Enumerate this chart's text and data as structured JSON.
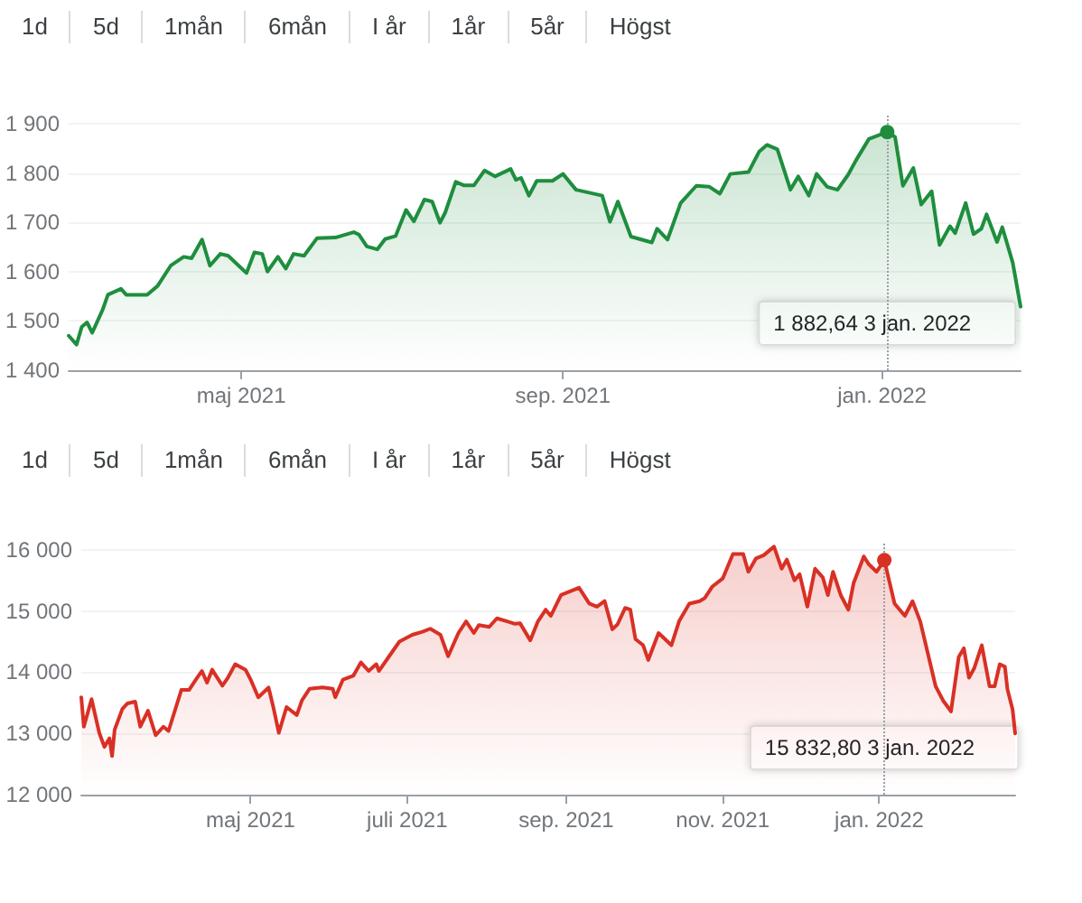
{
  "chart_data": [
    {
      "type": "area",
      "annotations": [
        "1d",
        "5d",
        "1mån",
        "6mån",
        "I år",
        "1år",
        "5år",
        "Högst"
      ],
      "xlim": [
        "2021-02-24",
        "2022-02-23"
      ],
      "xticks": [
        {
          "value": "2021-05-01",
          "label": "maj 2021"
        },
        {
          "value": "2021-09-01",
          "label": "sep. 2021"
        },
        {
          "value": "2022-01-01",
          "label": "jan. 2022"
        }
      ],
      "ylim": [
        1400,
        1920
      ],
      "yticks": [
        {
          "value": 1400,
          "label": "1 400"
        },
        {
          "value": 1500,
          "label": "1 500"
        },
        {
          "value": 1600,
          "label": "1 600"
        },
        {
          "value": 1700,
          "label": "1 700"
        },
        {
          "value": 1800,
          "label": "1 800"
        },
        {
          "value": 1900,
          "label": "1 900"
        }
      ],
      "grid": "y",
      "marker": "none",
      "line_style": "solid",
      "ref_lines": [
        {
          "axis": "x",
          "value": "2022-01-03",
          "label": "1 882,64 3 jan. 2022",
          "color": "#9aa0a6",
          "line_style": "dotted"
        }
      ],
      "series": [
        {
          "color": "#1e8e3e",
          "x": [
            "2021-02-24",
            "2021-02-27",
            "2021-03-01",
            "2021-03-03",
            "2021-03-05",
            "2021-03-09",
            "2021-03-11",
            "2021-03-16",
            "2021-03-18",
            "2021-03-26",
            "2021-03-30",
            "2021-04-04",
            "2021-04-09",
            "2021-04-12",
            "2021-04-16",
            "2021-04-19",
            "2021-04-23",
            "2021-04-26",
            "2021-04-30",
            "2021-05-03",
            "2021-05-06",
            "2021-05-09",
            "2021-05-11",
            "2021-05-15",
            "2021-05-18",
            "2021-05-21",
            "2021-05-25",
            "2021-05-30",
            "2021-06-06",
            "2021-06-13",
            "2021-06-15",
            "2021-06-18",
            "2021-06-22",
            "2021-06-25",
            "2021-06-29",
            "2021-07-03",
            "2021-07-06",
            "2021-07-10",
            "2021-07-13",
            "2021-07-16",
            "2021-07-18",
            "2021-07-22",
            "2021-07-25",
            "2021-07-29",
            "2021-08-02",
            "2021-08-06",
            "2021-08-12",
            "2021-08-14",
            "2021-08-16",
            "2021-08-19",
            "2021-08-22",
            "2021-08-28",
            "2021-09-01",
            "2021-09-06",
            "2021-09-11",
            "2021-09-16",
            "2021-09-19",
            "2021-09-22",
            "2021-09-27",
            "2021-10-01",
            "2021-10-05",
            "2021-10-07",
            "2021-10-11",
            "2021-10-16",
            "2021-10-22",
            "2021-10-27",
            "2021-10-31",
            "2021-11-04",
            "2021-11-11",
            "2021-11-15",
            "2021-11-18",
            "2021-11-22",
            "2021-11-27",
            "2021-11-30",
            "2021-12-04",
            "2021-12-07",
            "2021-12-11",
            "2021-12-15",
            "2021-12-19",
            "2021-12-22",
            "2021-12-27",
            "2022-01-03",
            "2022-01-06",
            "2022-01-09",
            "2022-01-13",
            "2022-01-16",
            "2022-01-20",
            "2022-01-23",
            "2022-01-27",
            "2022-01-29",
            "2022-02-02",
            "2022-02-05",
            "2022-02-08",
            "2022-02-10",
            "2022-02-14",
            "2022-02-16",
            "2022-02-20",
            "2022-02-23"
          ],
          "values": [
            1470,
            1452,
            1488,
            1497,
            1476,
            1523,
            1553,
            1565,
            1553,
            1553,
            1571,
            1612,
            1630,
            1627,
            1665,
            1612,
            1636,
            1632,
            1612,
            1597,
            1639,
            1636,
            1600,
            1630,
            1606,
            1636,
            1632,
            1668,
            1669,
            1680,
            1675,
            1651,
            1645,
            1666,
            1672,
            1725,
            1702,
            1746,
            1742,
            1699,
            1720,
            1782,
            1775,
            1775,
            1805,
            1793,
            1808,
            1786,
            1790,
            1754,
            1784,
            1784,
            1798,
            1766,
            1760,
            1754,
            1701,
            1742,
            1671,
            1665,
            1659,
            1687,
            1665,
            1739,
            1774,
            1772,
            1758,
            1798,
            1802,
            1843,
            1857,
            1848,
            1766,
            1793,
            1754,
            1798,
            1772,
            1766,
            1796,
            1825,
            1869,
            1883,
            1873,
            1774,
            1810,
            1736,
            1763,
            1654,
            1692,
            1678,
            1739,
            1676,
            1687,
            1716,
            1660,
            1690,
            1618,
            1529
          ]
        }
      ]
    },
    {
      "type": "area",
      "annotations": [
        "1d",
        "5d",
        "1mån",
        "6mån",
        "I år",
        "1år",
        "5år",
        "Högst"
      ],
      "xlim": [
        "2021-02-24",
        "2022-02-23"
      ],
      "xticks": [
        {
          "value": "2021-05-01",
          "label": "maj 2021"
        },
        {
          "value": "2021-07-01",
          "label": "juli 2021"
        },
        {
          "value": "2021-09-01",
          "label": "sep. 2021"
        },
        {
          "value": "2021-11-01",
          "label": "nov. 2021"
        },
        {
          "value": "2022-01-01",
          "label": "jan. 2022"
        }
      ],
      "ylim": [
        12000,
        16100
      ],
      "yticks": [
        {
          "value": 12000,
          "label": "12 000"
        },
        {
          "value": 13000,
          "label": "13 000"
        },
        {
          "value": 14000,
          "label": "14 000"
        },
        {
          "value": 15000,
          "label": "15 000"
        },
        {
          "value": 16000,
          "label": "16 000"
        }
      ],
      "grid": "y",
      "marker": "none",
      "line_style": "solid",
      "ref_lines": [
        {
          "axis": "x",
          "value": "2022-01-03",
          "label": "15 832,80 3 jan. 2022",
          "color": "#9aa0a6",
          "line_style": "dotted"
        }
      ],
      "series": [
        {
          "color": "#d93025",
          "x": [
            "2021-02-24",
            "2021-02-25",
            "2021-02-28",
            "2021-03-03",
            "2021-03-05",
            "2021-03-07",
            "2021-03-08",
            "2021-03-09",
            "2021-03-12",
            "2021-03-14",
            "2021-03-17",
            "2021-03-19",
            "2021-03-22",
            "2021-03-25",
            "2021-03-28",
            "2021-03-30",
            "2021-04-04",
            "2021-04-07",
            "2021-04-10",
            "2021-04-12",
            "2021-04-14",
            "2021-04-16",
            "2021-04-20",
            "2021-04-22",
            "2021-04-25",
            "2021-04-29",
            "2021-05-01",
            "2021-05-04",
            "2021-05-08",
            "2021-05-10",
            "2021-05-12",
            "2021-05-15",
            "2021-05-19",
            "2021-05-21",
            "2021-05-24",
            "2021-05-29",
            "2021-06-02",
            "2021-06-03",
            "2021-06-06",
            "2021-06-10",
            "2021-06-13",
            "2021-06-16",
            "2021-06-19",
            "2021-06-20",
            "2021-06-24",
            "2021-06-28",
            "2021-07-03",
            "2021-07-07",
            "2021-07-10",
            "2021-07-14",
            "2021-07-17",
            "2021-07-21",
            "2021-07-24",
            "2021-07-27",
            "2021-07-29",
            "2021-08-02",
            "2021-08-05",
            "2021-08-09",
            "2021-08-12",
            "2021-08-14",
            "2021-08-18",
            "2021-08-21",
            "2021-08-24",
            "2021-08-26",
            "2021-08-30",
            "2021-09-06",
            "2021-09-10",
            "2021-09-13",
            "2021-09-16",
            "2021-09-19",
            "2021-09-21",
            "2021-09-24",
            "2021-09-26",
            "2021-09-28",
            "2021-10-01",
            "2021-10-03",
            "2021-10-07",
            "2021-10-12",
            "2021-10-15",
            "2021-10-19",
            "2021-10-23",
            "2021-10-25",
            "2021-10-28",
            "2021-11-01",
            "2021-11-05",
            "2021-11-09",
            "2021-11-11",
            "2021-11-14",
            "2021-11-17",
            "2021-11-21",
            "2021-11-24",
            "2021-11-26",
            "2021-11-29",
            "2021-12-01",
            "2021-12-04",
            "2021-12-07",
            "2021-12-10",
            "2021-12-12",
            "2021-12-14",
            "2021-12-17",
            "2021-12-20",
            "2021-12-22",
            "2021-12-26",
            "2021-12-28",
            "2021-12-31",
            "2022-01-03",
            "2022-01-07",
            "2022-01-11",
            "2022-01-14",
            "2022-01-17",
            "2022-01-20",
            "2022-01-23",
            "2022-01-26",
            "2022-01-29",
            "2022-02-01",
            "2022-02-03",
            "2022-02-05",
            "2022-02-07",
            "2022-02-10",
            "2022-02-13",
            "2022-02-15",
            "2022-02-17",
            "2022-02-19",
            "2022-02-20",
            "2022-02-22",
            "2022-02-23"
          ],
          "values": [
            13590,
            13110,
            13560,
            13010,
            12780,
            12920,
            12630,
            13060,
            13400,
            13490,
            13520,
            13110,
            13370,
            12970,
            13110,
            13040,
            13710,
            13710,
            13900,
            14020,
            13830,
            14040,
            13780,
            13900,
            14130,
            14040,
            13880,
            13590,
            13750,
            13400,
            13010,
            13430,
            13300,
            13540,
            13730,
            13750,
            13730,
            13590,
            13880,
            13940,
            14160,
            14020,
            14130,
            14020,
            14260,
            14500,
            14610,
            14660,
            14710,
            14610,
            14260,
            14640,
            14830,
            14640,
            14770,
            14740,
            14880,
            14830,
            14790,
            14800,
            14520,
            14830,
            15020,
            14920,
            15260,
            15380,
            15120,
            15070,
            15160,
            14700,
            14780,
            15050,
            15020,
            14540,
            14440,
            14200,
            14640,
            14440,
            14830,
            15120,
            15160,
            15210,
            15400,
            15530,
            15930,
            15930,
            15640,
            15860,
            15910,
            16050,
            15690,
            15840,
            15500,
            15600,
            15070,
            15690,
            15550,
            15260,
            15640,
            15260,
            15020,
            15450,
            15890,
            15760,
            15640,
            15830,
            15120,
            14920,
            15160,
            14830,
            14300,
            13770,
            13530,
            13360,
            14250,
            14390,
            13910,
            14060,
            14440,
            13770,
            13770,
            14130,
            14090,
            13720,
            13390,
            13000
          ]
        }
      ]
    }
  ]
}
